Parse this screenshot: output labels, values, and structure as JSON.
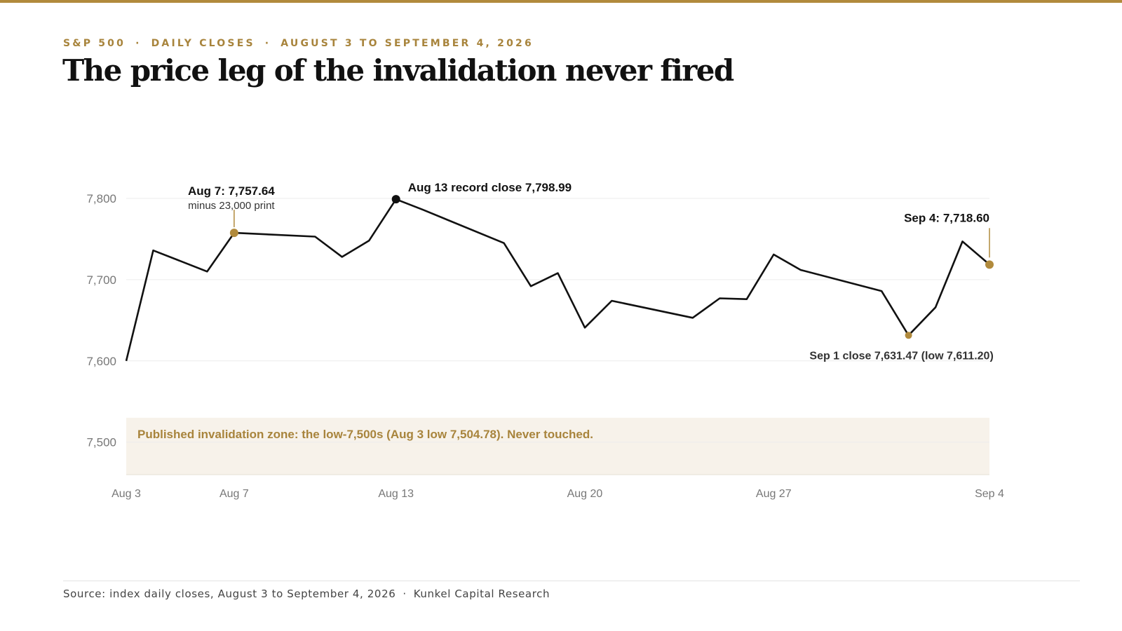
{
  "header": {
    "kicker_parts": [
      "S&P 500",
      "DAILY CLOSES",
      "AUGUST 3 TO SEPTEMBER 4, 2026"
    ],
    "kicker_sep": "·",
    "title": "The price leg of the invalidation never fired"
  },
  "footer": {
    "source": "Source: index daily closes, August 3 to September 4, 2026",
    "sep": "·",
    "credit": "Kunkel Capital Research"
  },
  "colors": {
    "accent": "#b18a3c",
    "accent_text": "#a8843c",
    "zone_fill": "#f7f2ea",
    "line": "#111111",
    "grid": "#ececec",
    "axis_text": "#777777"
  },
  "chart_data": {
    "type": "line",
    "title": "The price leg of the invalidation never fired",
    "xlabel": "",
    "ylabel": "",
    "ylim": [
      7460,
      7800
    ],
    "yticks": [
      7500,
      7600,
      7700,
      7800
    ],
    "ytick_labels": [
      "7,500",
      "7,600",
      "7,700",
      "7,800"
    ],
    "xticks": [
      {
        "date": "2026-08-03",
        "label": "Aug 3"
      },
      {
        "date": "2026-08-07",
        "label": "Aug 7"
      },
      {
        "date": "2026-08-13",
        "label": "Aug 13"
      },
      {
        "date": "2026-08-20",
        "label": "Aug 20"
      },
      {
        "date": "2026-08-27",
        "label": "Aug 27"
      },
      {
        "date": "2026-09-04",
        "label": "Sep 4"
      }
    ],
    "grid": true,
    "series": [
      {
        "values": [
          {
            "date": "2026-08-03",
            "value": 7600.0
          },
          {
            "date": "2026-08-04",
            "value": 7736.0
          },
          {
            "date": "2026-08-05",
            "value": 7723.0
          },
          {
            "date": "2026-08-06",
            "value": 7710.0
          },
          {
            "date": "2026-08-07",
            "value": 7757.64
          },
          {
            "date": "2026-08-10",
            "value": 7753.0
          },
          {
            "date": "2026-08-11",
            "value": 7728.0
          },
          {
            "date": "2026-08-12",
            "value": 7748.0
          },
          {
            "date": "2026-08-13",
            "value": 7798.99
          },
          {
            "date": "2026-08-14",
            "value": 7786.0
          },
          {
            "date": "2026-08-17",
            "value": 7745.0
          },
          {
            "date": "2026-08-18",
            "value": 7692.0
          },
          {
            "date": "2026-08-19",
            "value": 7708.0
          },
          {
            "date": "2026-08-20",
            "value": 7641.0
          },
          {
            "date": "2026-08-21",
            "value": 7674.0
          },
          {
            "date": "2026-08-24",
            "value": 7653.0
          },
          {
            "date": "2026-08-25",
            "value": 7677.0
          },
          {
            "date": "2026-08-26",
            "value": 7676.0
          },
          {
            "date": "2026-08-27",
            "value": 7731.0
          },
          {
            "date": "2026-08-28",
            "value": 7712.0
          },
          {
            "date": "2026-08-31",
            "value": 7686.0
          },
          {
            "date": "2026-09-01",
            "value": 7631.47
          },
          {
            "date": "2026-09-02",
            "value": 7666.0
          },
          {
            "date": "2026-09-03",
            "value": 7747.0
          },
          {
            "date": "2026-09-04",
            "value": 7718.6
          }
        ]
      }
    ],
    "highlight_band": {
      "from": 7460,
      "to": 7530,
      "label": "Published invalidation zone: the low-7,500s (Aug 3 low 7,504.78). Never touched."
    },
    "annotations": [
      {
        "date": "2026-08-07",
        "value": 7757.64,
        "label": "Aug 7: 7,757.64",
        "sublabel": "minus 23,000 print",
        "marker": "accent"
      },
      {
        "date": "2026-08-13",
        "value": 7798.99,
        "label": "Aug 13 record close 7,798.99",
        "marker": "dark"
      },
      {
        "date": "2026-09-01",
        "value": 7631.47,
        "label": "Sep 1 close 7,631.47 (low 7,611.20)",
        "marker": "accent"
      },
      {
        "date": "2026-09-04",
        "value": 7718.6,
        "label": "Sep 4: 7,718.60",
        "marker": "accent"
      }
    ]
  }
}
